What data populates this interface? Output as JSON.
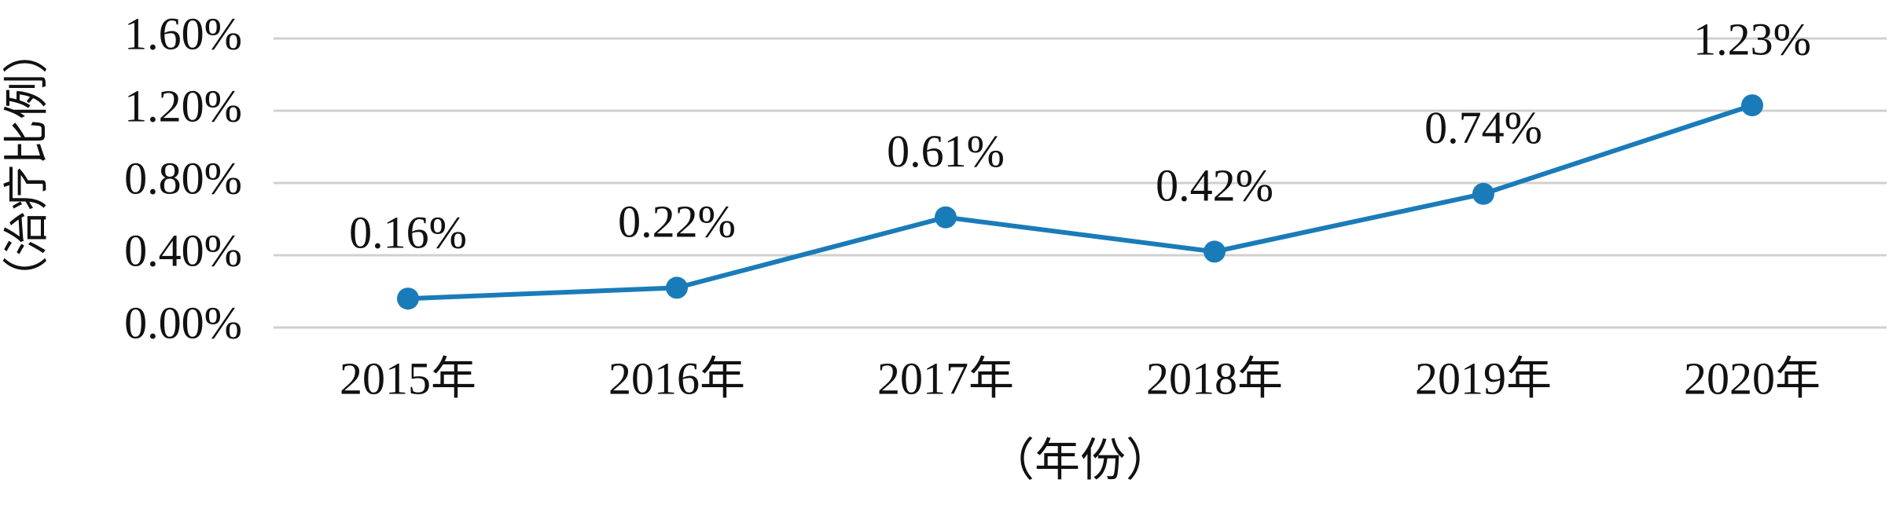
{
  "chart_data": {
    "type": "line",
    "y_label": "（治疗比例）",
    "x_label": "（年份）",
    "categories": [
      "2015年",
      "2016年",
      "2017年",
      "2018年",
      "2019年",
      "2020年"
    ],
    "series": [
      {
        "color": "#1a7bb9",
        "values": [
          0.16,
          0.22,
          0.61,
          0.42,
          0.74,
          1.23
        ],
        "value_labels": [
          "0.16%",
          "0.22%",
          "0.61%",
          "0.42%",
          "0.74%",
          "1.23%"
        ]
      }
    ],
    "ylim": [
      0,
      1.6
    ],
    "yticks": [
      {
        "value": 0,
        "label": "0.00%"
      },
      {
        "value": 0.4,
        "label": "0.40%"
      },
      {
        "value": 0.8,
        "label": "0.80%"
      },
      {
        "value": 1.2,
        "label": "1.20%"
      },
      {
        "value": 1.6,
        "label": "1.60%"
      }
    ],
    "grid": true
  }
}
